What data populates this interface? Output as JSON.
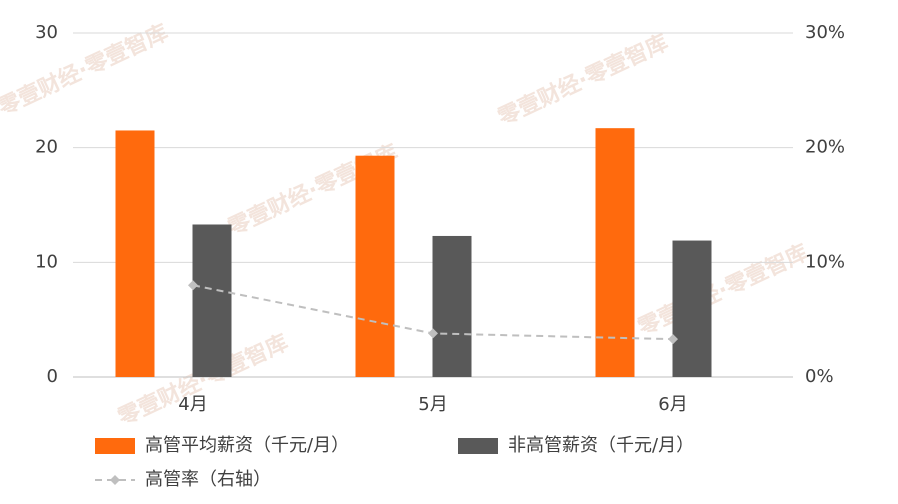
{
  "chart_data": {
    "type": "bar",
    "categories": [
      "4月",
      "5月",
      "6月"
    ],
    "series": [
      {
        "name": "高管平均薪资（千元/月）",
        "color": "#ff6a0d",
        "values": [
          21.5,
          19.3,
          21.7
        ],
        "type": "bar"
      },
      {
        "name": "非高管薪资（千元/月）",
        "color": "#595959",
        "values": [
          13.3,
          12.3,
          11.9
        ],
        "type": "bar"
      },
      {
        "name": "高管率（右轴）",
        "color": "#bfbfbf",
        "values": [
          8,
          3.8,
          3.3
        ],
        "type": "line",
        "axis": "y2"
      }
    ],
    "ylim": [
      0,
      30
    ],
    "yticks": [
      0,
      10,
      20,
      30
    ],
    "y2lim": [
      0,
      30
    ],
    "y2ticks": [
      {
        "value": 0,
        "label": "0%"
      },
      {
        "value": 10,
        "label": "10%"
      },
      {
        "value": 20,
        "label": "20%"
      },
      {
        "value": 30,
        "label": "30%"
      }
    ],
    "grid": true,
    "watermark": "零壹财经·零壹智库"
  }
}
